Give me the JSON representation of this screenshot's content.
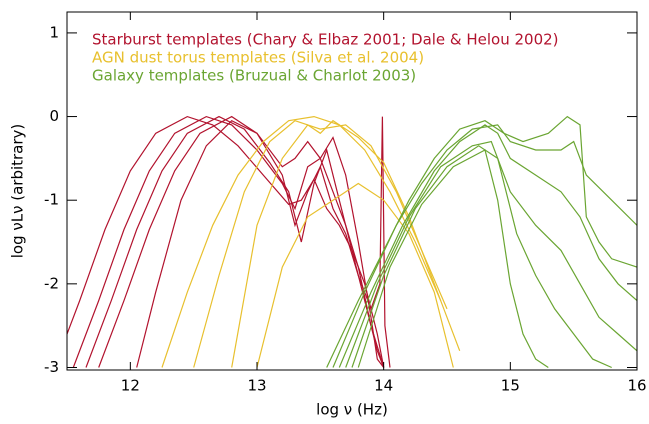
{
  "chart_data": {
    "type": "line",
    "x_label": "log ν (Hz)",
    "y_label": "log νLν (arbitrary)",
    "xlim": [
      11.5,
      16
    ],
    "ylim": [
      -3.03,
      1.25
    ],
    "xticks": [
      12,
      13,
      14,
      15,
      16
    ],
    "yticks": [
      -3,
      -2,
      -1,
      0,
      1
    ],
    "series": [
      {
        "name": "Starburst templates (Chary & Elbaz 2001; Dale & Helou 2002)",
        "color": "#b2132e",
        "lines": [
          {
            "x": [
              11.4,
              11.6,
              11.8,
              12.0,
              12.2,
              12.45,
              12.65,
              12.85,
              13.05,
              13.25,
              13.35,
              13.45,
              13.55,
              13.65,
              13.75,
              13.85,
              13.95,
              14.0
            ],
            "values": [
              -3,
              -2.2,
              -1.35,
              -0.65,
              -0.2,
              0,
              -0.1,
              -0.35,
              -0.7,
              -1.05,
              -1.0,
              -0.75,
              -1.1,
              -1.3,
              -1.6,
              -2.0,
              -2.6,
              -3
            ]
          },
          {
            "x": [
              11.55,
              11.75,
              11.95,
              12.15,
              12.35,
              12.6,
              12.8,
              13.0,
              13.2,
              13.3,
              13.4,
              13.5,
              13.6,
              13.7,
              13.8,
              13.9,
              14.0
            ],
            "values": [
              -3,
              -2.2,
              -1.35,
              -0.65,
              -0.2,
              0,
              -0.1,
              -0.4,
              -0.8,
              -1.1,
              -0.6,
              -0.5,
              -0.9,
              -1.3,
              -1.8,
              -2.5,
              -3
            ]
          },
          {
            "x": [
              11.65,
              11.85,
              12.05,
              12.25,
              12.45,
              12.7,
              12.9,
              13.1,
              13.25,
              13.35,
              13.45,
              13.55,
              13.65,
              13.75,
              13.85,
              13.95,
              14.0
            ],
            "values": [
              -3,
              -2.2,
              -1.35,
              -0.65,
              -0.2,
              0,
              -0.15,
              -0.55,
              -0.9,
              -1.5,
              -0.8,
              -0.4,
              -1.0,
              -1.6,
              -2.2,
              -2.8,
              -3
            ]
          },
          {
            "x": [
              11.75,
              11.95,
              12.15,
              12.35,
              12.55,
              12.8,
              13.0,
              13.2,
              13.3,
              13.4,
              13.5,
              13.6,
              13.7,
              13.8,
              13.9,
              13.95,
              14.0
            ],
            "values": [
              -3,
              -2.2,
              -1.35,
              -0.65,
              -0.2,
              0,
              -0.2,
              -0.6,
              -0.5,
              -0.3,
              -0.5,
              -0.25,
              -0.7,
              -1.5,
              -2.4,
              -2.9,
              -3
            ]
          },
          {
            "x": [
              12.05,
              12.2,
              12.4,
              12.6,
              12.8,
              13.0,
              13.2,
              13.3,
              13.4,
              13.5,
              13.6,
              13.7,
              13.8,
              13.9,
              13.97,
              13.99,
              14.01,
              14.05
            ],
            "values": [
              -3,
              -2.1,
              -1.0,
              -0.35,
              -0.05,
              -0.2,
              -0.7,
              -1.3,
              -0.9,
              -0.6,
              -1.1,
              -1.4,
              -1.9,
              -2.3,
              -2.0,
              0,
              -2.5,
              -3
            ]
          }
        ]
      },
      {
        "name": "AGN dust torus templates (Silva et al. 2004)",
        "color": "#e8c02e",
        "lines": [
          {
            "x": [
              12.25,
              12.45,
              12.65,
              12.85,
              13.05,
              13.25,
              13.45,
              13.65,
              13.85,
              14.05,
              14.25,
              14.45
            ],
            "values": [
              -3,
              -2.1,
              -1.3,
              -0.7,
              -0.3,
              -0.05,
              0,
              -0.1,
              -0.4,
              -0.9,
              -1.5,
              -2.2
            ]
          },
          {
            "x": [
              12.5,
              12.7,
              12.9,
              13.1,
              13.3,
              13.5,
              13.7,
              13.9,
              14.1,
              14.3,
              14.5
            ],
            "values": [
              -3,
              -1.9,
              -0.9,
              -0.3,
              -0.05,
              -0.15,
              -0.1,
              -0.35,
              -0.9,
              -1.6,
              -2.3
            ]
          },
          {
            "x": [
              12.8,
              13.0,
              13.2,
              13.4,
              13.5,
              13.6,
              13.8,
              14.0,
              14.2,
              14.4,
              14.6
            ],
            "values": [
              -3,
              -1.3,
              -0.5,
              -0.1,
              -0.2,
              -0.05,
              -0.25,
              -0.55,
              -1.2,
              -2.0,
              -2.8
            ]
          },
          {
            "x": [
              13.0,
              13.2,
              13.4,
              13.6,
              13.8,
              14.0,
              14.2,
              14.4,
              14.55
            ],
            "values": [
              -3,
              -1.8,
              -1.2,
              -1.0,
              -0.8,
              -1.0,
              -1.4,
              -2.1,
              -3
            ]
          }
        ]
      },
      {
        "name": "Galaxy templates (Bruzual & Charlot 2003)",
        "color": "#6aa532",
        "lines": [
          {
            "x": [
              13.55,
              13.8,
              14.0,
              14.2,
              14.4,
              14.6,
              14.8,
              14.95,
              15.1,
              15.3,
              15.45,
              15.55,
              15.6,
              15.7,
              15.8,
              16.0
            ],
            "values": [
              -3,
              -2.2,
              -1.6,
              -1.0,
              -0.5,
              -0.15,
              -0.05,
              -0.2,
              -0.3,
              -0.2,
              0,
              -0.1,
              -1.2,
              -1.5,
              -1.7,
              -1.8
            ]
          },
          {
            "x": [
              13.6,
              13.85,
              14.1,
              14.3,
              14.5,
              14.7,
              14.9,
              15.0,
              15.2,
              15.4,
              15.5,
              15.6,
              15.8,
              16.0
            ],
            "values": [
              -3,
              -2.1,
              -1.3,
              -0.8,
              -0.4,
              -0.15,
              -0.1,
              -0.3,
              -0.4,
              -0.4,
              -0.3,
              -0.7,
              -1.0,
              -1.3
            ]
          },
          {
            "x": [
              13.65,
              13.9,
              14.15,
              14.4,
              14.6,
              14.8,
              14.9,
              15.0,
              15.2,
              15.4,
              15.55,
              15.7,
              15.85,
              16.0
            ],
            "values": [
              -3,
              -2.1,
              -1.3,
              -0.65,
              -0.3,
              -0.1,
              -0.2,
              -0.5,
              -0.7,
              -0.9,
              -1.2,
              -1.7,
              -2.0,
              -2.2
            ]
          },
          {
            "x": [
              13.7,
              13.95,
              14.2,
              14.45,
              14.7,
              14.85,
              15.0,
              15.2,
              15.4,
              15.55,
              15.7,
              15.85,
              16.0
            ],
            "values": [
              -3,
              -2.0,
              -1.2,
              -0.6,
              -0.35,
              -0.3,
              -0.9,
              -1.3,
              -1.6,
              -2.0,
              -2.4,
              -2.6,
              -2.8
            ]
          },
          {
            "x": [
              13.75,
              14.0,
              14.25,
              14.5,
              14.75,
              14.9,
              15.05,
              15.2,
              15.35,
              15.5,
              15.65,
              15.8
            ],
            "values": [
              -3,
              -1.9,
              -1.1,
              -0.6,
              -0.35,
              -0.5,
              -1.4,
              -1.9,
              -2.3,
              -2.6,
              -2.9,
              -3
            ]
          },
          {
            "x": [
              13.8,
              14.05,
              14.3,
              14.55,
              14.8,
              14.9,
              15.0,
              15.1,
              15.2,
              15.3
            ],
            "values": [
              -3,
              -1.8,
              -1.05,
              -0.6,
              -0.4,
              -1.0,
              -2.0,
              -2.6,
              -2.9,
              -3
            ]
          }
        ]
      }
    ]
  }
}
